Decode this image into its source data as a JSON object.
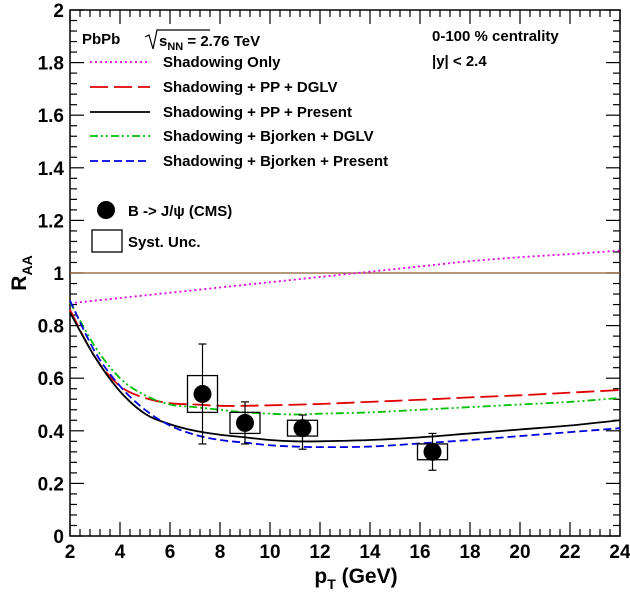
{
  "chart_data": {
    "type": "line",
    "title": "",
    "xlabel": "p_T (GeV)",
    "ylabel": "R_AA",
    "xlim": [
      2,
      24
    ],
    "ylim": [
      0,
      2
    ],
    "x_ticks": [
      2,
      4,
      6,
      8,
      10,
      12,
      14,
      16,
      18,
      20,
      22,
      24
    ],
    "y_ticks": [
      0,
      0.2,
      0.4,
      0.6,
      0.8,
      1,
      1.2,
      1.4,
      1.6,
      1.8,
      2
    ],
    "annotations": {
      "system": "PbPb",
      "energy_prefix": "s",
      "energy_sub": "NN",
      "energy_value": "= 2.76 TeV",
      "centrality": "0-100 % centrality",
      "rapidity": "|y| < 2.4"
    },
    "reference_line": {
      "y": 1,
      "color": "#8b5a2b"
    },
    "series": [
      {
        "name": "Shadowing Only",
        "color": "#e000e0",
        "dash": "2,3",
        "x": [
          2,
          4,
          6,
          8,
          10,
          12,
          14,
          16,
          18,
          20,
          22,
          24
        ],
        "y": [
          0.885,
          0.905,
          0.925,
          0.945,
          0.965,
          0.985,
          1.005,
          1.025,
          1.045,
          1.06,
          1.072,
          1.085
        ]
      },
      {
        "name": "Shadowing + PP + DGLV",
        "color": "#e00000",
        "dash": "18,6",
        "x": [
          2,
          3,
          4,
          5,
          6,
          7,
          8,
          9,
          10,
          12,
          14,
          16,
          18,
          20,
          22,
          24
        ],
        "y": [
          0.86,
          0.68,
          0.57,
          0.525,
          0.505,
          0.5,
          0.495,
          0.495,
          0.497,
          0.502,
          0.51,
          0.518,
          0.527,
          0.535,
          0.545,
          0.555
        ]
      },
      {
        "name": "Shadowing + PP + Present",
        "color": "#000000",
        "dash": "",
        "x": [
          2,
          3,
          4,
          5,
          6,
          7,
          8,
          9,
          10,
          11,
          12,
          14,
          16,
          18,
          20,
          22,
          24
        ],
        "y": [
          0.85,
          0.68,
          0.55,
          0.465,
          0.425,
          0.4,
          0.385,
          0.375,
          0.365,
          0.36,
          0.36,
          0.365,
          0.375,
          0.39,
          0.405,
          0.42,
          0.44
        ]
      },
      {
        "name": "Shadowing + Bjorken + DGLV",
        "color": "#00c000",
        "dash": "8,3,2,3,2,3",
        "x": [
          2,
          3,
          4,
          5,
          6,
          7,
          8,
          9,
          10,
          11,
          12,
          14,
          16,
          18,
          20,
          22,
          24
        ],
        "y": [
          0.89,
          0.72,
          0.6,
          0.535,
          0.5,
          0.49,
          0.48,
          0.47,
          0.465,
          0.462,
          0.465,
          0.47,
          0.48,
          0.49,
          0.5,
          0.51,
          0.525
        ]
      },
      {
        "name": "Shadowing + Bjorken + Present",
        "color": "#0000e0",
        "dash": "8,4",
        "x": [
          2,
          3,
          4,
          5,
          6,
          7,
          8,
          9,
          10,
          11,
          12,
          14,
          16,
          18,
          20,
          22,
          24
        ],
        "y": [
          0.895,
          0.7,
          0.57,
          0.48,
          0.42,
          0.385,
          0.365,
          0.355,
          0.345,
          0.34,
          0.338,
          0.34,
          0.352,
          0.365,
          0.38,
          0.395,
          0.41
        ]
      }
    ],
    "data_points": {
      "name": "B -> J/ψ (CMS)",
      "points": [
        {
          "x": 7.3,
          "y": 0.54,
          "stat_low": 0.19,
          "stat_high": 0.19,
          "syst": 0.07,
          "box_width": 1.2
        },
        {
          "x": 9.0,
          "y": 0.43,
          "stat_low": 0.08,
          "stat_high": 0.08,
          "syst": 0.04,
          "box_width": 1.2
        },
        {
          "x": 11.3,
          "y": 0.41,
          "stat_low": 0.08,
          "stat_high": 0.05,
          "syst": 0.03,
          "box_width": 1.2
        },
        {
          "x": 16.5,
          "y": 0.32,
          "stat_low": 0.07,
          "stat_high": 0.07,
          "syst": 0.03,
          "box_width": 1.2
        }
      ]
    },
    "syst_label": "Syst. Unc."
  }
}
